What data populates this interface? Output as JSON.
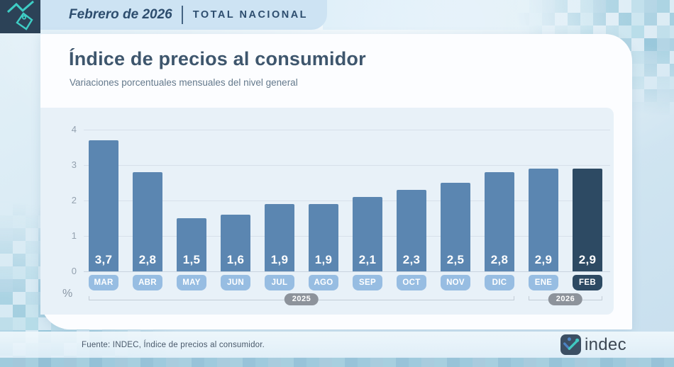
{
  "header": {
    "period": "Febrero de 2026",
    "scope": "TOTAL NACIONAL"
  },
  "title": "Índice de precios al consumidor",
  "subtitle": "Variaciones porcentuales mensuales del nivel general",
  "chart_data": {
    "type": "bar",
    "title": "Índice de precios al consumidor",
    "subtitle": "Variaciones porcentuales mensuales del nivel general",
    "categories": [
      "MAR",
      "ABR",
      "MAY",
      "JUN",
      "JUL",
      "AGO",
      "SEP",
      "OCT",
      "NOV",
      "DIC",
      "ENE",
      "FEB"
    ],
    "values": [
      3.7,
      2.8,
      1.5,
      1.6,
      1.9,
      1.9,
      2.1,
      2.3,
      2.5,
      2.8,
      2.9,
      2.9
    ],
    "value_labels": [
      "3,7",
      "2,8",
      "1,5",
      "1,6",
      "1,9",
      "1,9",
      "2,1",
      "2,3",
      "2,5",
      "2,8",
      "2,9",
      "2,9"
    ],
    "highlight_index": 11,
    "y_ticks": [
      0,
      1,
      2,
      3,
      4
    ],
    "ylim": [
      0,
      4
    ],
    "unit": "%",
    "grid": true,
    "year_groups": [
      {
        "label": "2025",
        "start": 0,
        "end": 9
      },
      {
        "label": "2026",
        "start": 10,
        "end": 11
      }
    ],
    "colors": {
      "bar": "#5b86b1",
      "bar_highlight": "#2d4a63",
      "chip": "#97bde2",
      "chip_highlight": "#2d4a63",
      "panel_bg": "#e8f1f8"
    }
  },
  "axis": {
    "percent_label": "%"
  },
  "footer": {
    "source": "Fuente: INDEC, Índice de precios al consumidor.",
    "logo_text": "indec"
  }
}
